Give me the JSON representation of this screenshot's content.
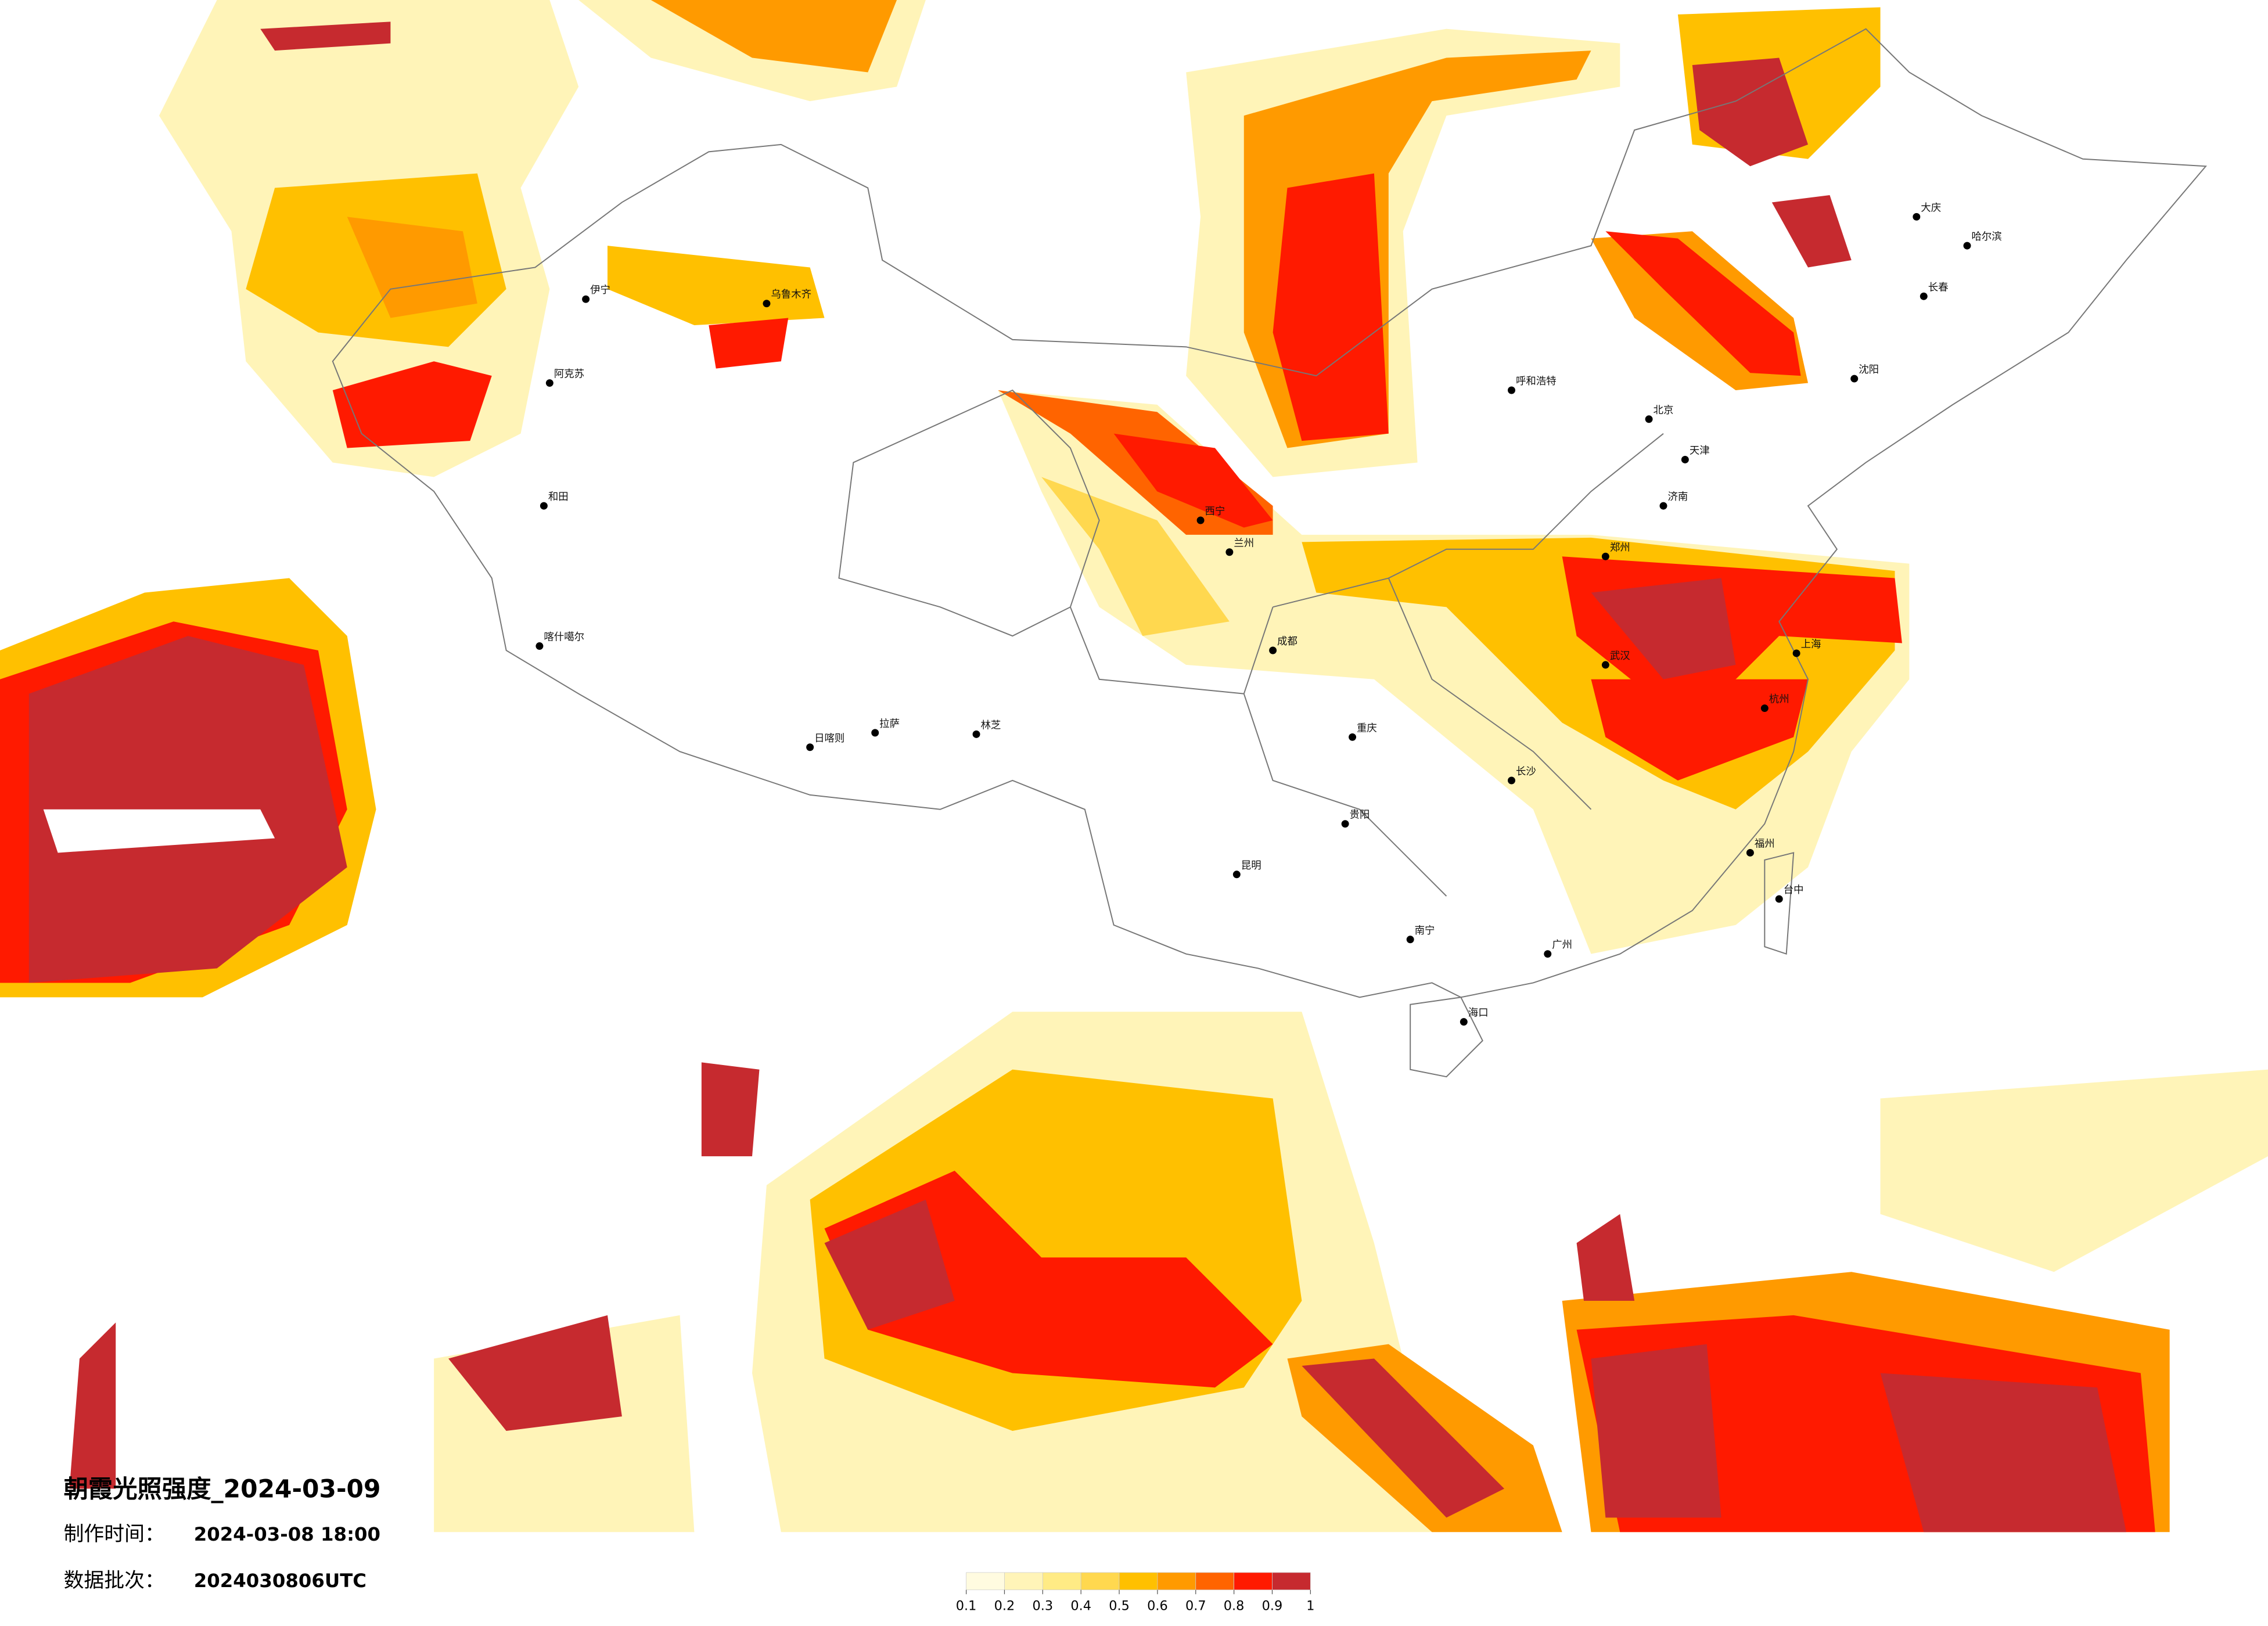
{
  "map": {
    "title": "朝霞光照强度_2024-03-09",
    "info": [
      {
        "label": "制作时间：",
        "value": "2024-03-08 18:00"
      },
      {
        "label": "数据批次：",
        "value": "2024030806UTC"
      }
    ],
    "colorbar": {
      "ticks": [
        0.1,
        0.2,
        0.3,
        0.4,
        0.5,
        0.6,
        0.7,
        0.8,
        0.9,
        1
      ],
      "colors": [
        "#fffbe0",
        "#fff4b8",
        "#ffeb85",
        "#ffd84f",
        "#ffc000",
        "#ff9a00",
        "#ff6400",
        "#ff1a00",
        "#c62a2f"
      ]
    },
    "cities": [
      "伊宁",
      "乌鲁木齐",
      "阿克苏",
      "和田",
      "喀什噶尔",
      "日喀则",
      "拉萨",
      "林芝",
      "西宁",
      "兰州",
      "成都",
      "重庆",
      "昆明",
      "贵阳",
      "南宁",
      "海口",
      "广州",
      "长沙",
      "武汉",
      "郑州",
      "济南",
      "北京",
      "天津",
      "上海",
      "杭州",
      "福州",
      "台中",
      "哈尔滨",
      "长春",
      "沈阳",
      "大庆",
      "呼和浩特"
    ]
  }
}
